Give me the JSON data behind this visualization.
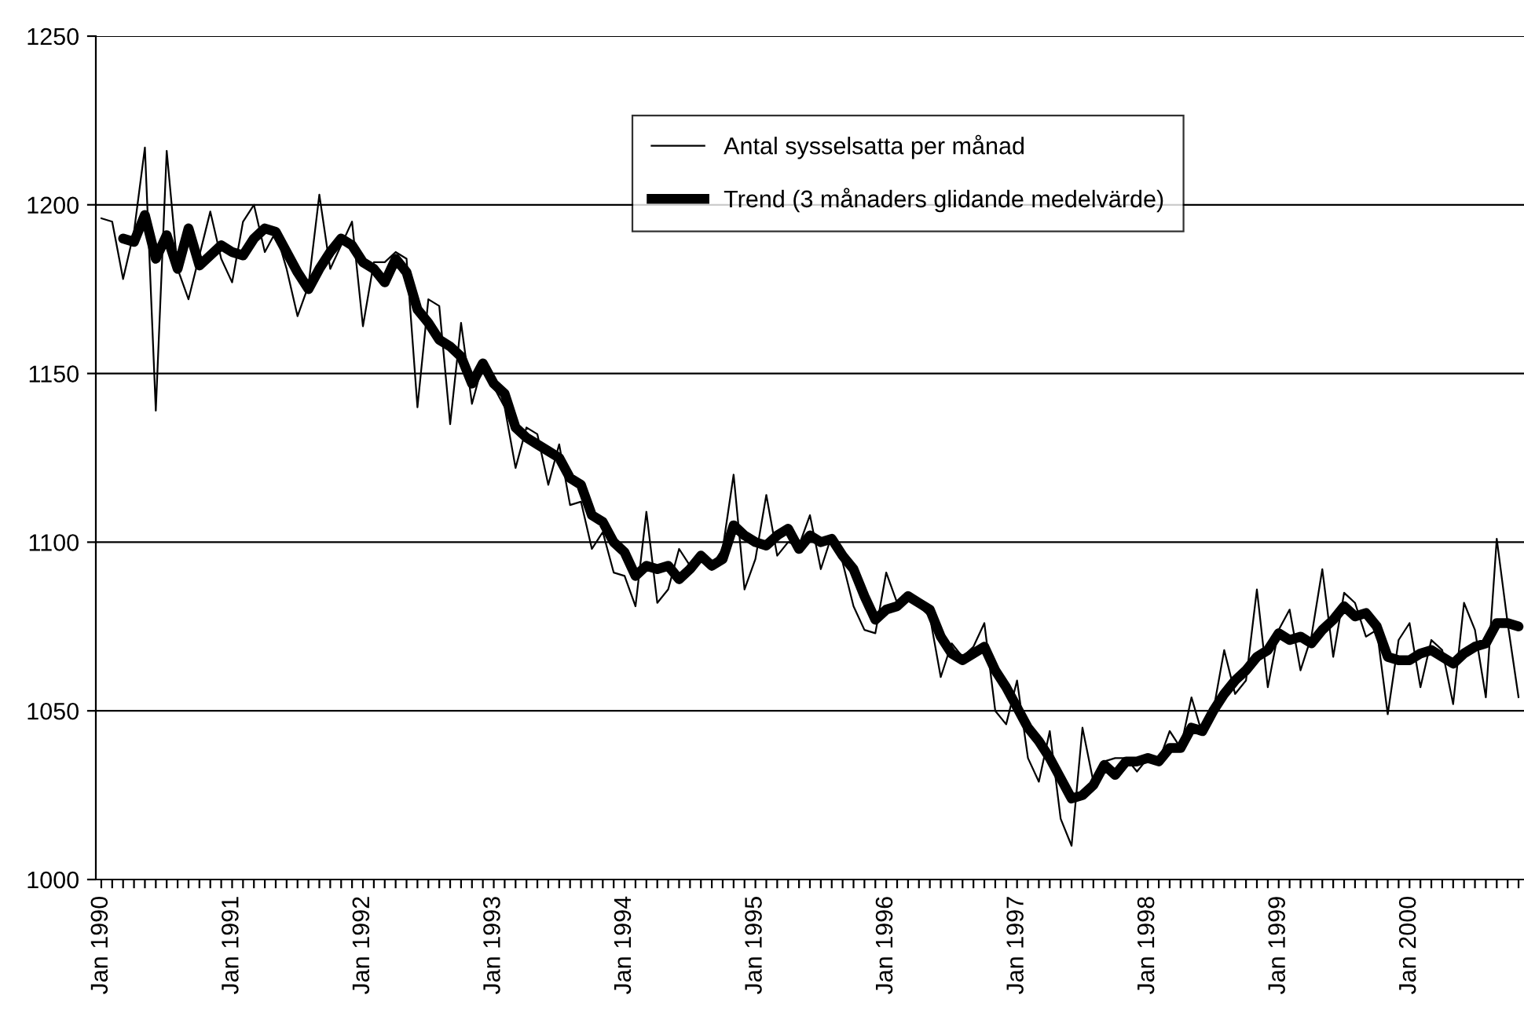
{
  "chart_data": {
    "type": "line",
    "categories": [
      "Jan 1990",
      null,
      null,
      null,
      null,
      null,
      null,
      null,
      null,
      null,
      null,
      null,
      "Jan 1991",
      null,
      null,
      null,
      null,
      null,
      null,
      null,
      null,
      null,
      null,
      null,
      "Jan 1992",
      null,
      null,
      null,
      null,
      null,
      null,
      null,
      null,
      null,
      null,
      null,
      "Jan 1993",
      null,
      null,
      null,
      null,
      null,
      null,
      null,
      null,
      null,
      null,
      null,
      "Jan 1994",
      null,
      null,
      null,
      null,
      null,
      null,
      null,
      null,
      null,
      null,
      null,
      "Jan 1995",
      null,
      null,
      null,
      null,
      null,
      null,
      null,
      null,
      null,
      null,
      null,
      "Jan 1996",
      null,
      null,
      null,
      null,
      null,
      null,
      null,
      null,
      null,
      null,
      null,
      "Jan 1997",
      null,
      null,
      null,
      null,
      null,
      null,
      null,
      null,
      null,
      null,
      null,
      "Jan 1998",
      null,
      null,
      null,
      null,
      null,
      null,
      null,
      null,
      null,
      null,
      null,
      "Jan 1999",
      null,
      null,
      null,
      null,
      null,
      null,
      null,
      null,
      null,
      null,
      null,
      "Jan 2000",
      null,
      null,
      null,
      null,
      null,
      null,
      null,
      null,
      null,
      null
    ],
    "series": [
      {
        "name": "Antal sysselsatta per månad",
        "color": "#000000",
        "values": [
          1196,
          1195,
          1178,
          1192,
          1217,
          1139,
          1216,
          1181,
          1172,
          1185,
          1198,
          1184,
          1177,
          1195,
          1200,
          1186,
          1192,
          1181,
          1167,
          1176,
          1203,
          1181,
          1188,
          1195,
          1164,
          1183,
          1183,
          1186,
          1184,
          1140,
          1172,
          1170,
          1135,
          1165,
          1141,
          1153,
          1146,
          1140,
          1122,
          1134,
          1132,
          1117,
          1129,
          1111,
          1112,
          1098,
          1103,
          1091,
          1090,
          1081,
          1109,
          1082,
          1086,
          1098,
          1093,
          1096,
          1093,
          1098,
          1120,
          1086,
          1095,
          1114,
          1096,
          1100,
          1099,
          1108,
          1092,
          1102,
          1094,
          1081,
          1074,
          1073,
          1091,
          1082,
          1084,
          1081,
          1078,
          1060,
          1070,
          1066,
          1069,
          1076,
          1050,
          1046,
          1059,
          1036,
          1029,
          1044,
          1018,
          1010,
          1045,
          1029,
          1035,
          1036,
          1036,
          1032,
          1036,
          1035,
          1044,
          1039,
          1054,
          1043,
          1050,
          1068,
          1055,
          1059,
          1086,
          1057,
          1074,
          1080,
          1062,
          1072,
          1092,
          1066,
          1085,
          1082,
          1072,
          1074,
          1049,
          1071,
          1076,
          1057,
          1071,
          1068,
          1052,
          1082,
          1074,
          1054,
          1101,
          1076,
          1054
        ]
      },
      {
        "name": "Trend (3 månaders glidande medelvärde)",
        "color": "#000000",
        "values": [
          null,
          null,
          1190,
          1189,
          1197,
          1184,
          1191,
          1181,
          1193,
          1182,
          1185,
          1188,
          1186,
          1185,
          1190,
          1193,
          1192,
          1186,
          1180,
          1175,
          1181,
          1186,
          1190,
          1188,
          1183,
          1181,
          1177,
          1184,
          1180,
          1169,
          1165,
          1160,
          1158,
          1155,
          1147,
          1153,
          1147,
          1144,
          1134,
          1131,
          1129,
          1127,
          1125,
          1119,
          1117,
          1108,
          1106,
          1100,
          1097,
          1090,
          1093,
          1092,
          1093,
          1089,
          1092,
          1096,
          1093,
          1095,
          1105,
          1102,
          1100,
          1099,
          1102,
          1104,
          1098,
          1102,
          1100,
          1101,
          1096,
          1092,
          1084,
          1077,
          1080,
          1081,
          1084,
          1082,
          1080,
          1072,
          1067,
          1065,
          1067,
          1069,
          1062,
          1057,
          1051,
          1045,
          1041,
          1036,
          1030,
          1024,
          1025,
          1028,
          1034,
          1031,
          1035,
          1035,
          1036,
          1035,
          1039,
          1039,
          1045,
          1044,
          1050,
          1055,
          1059,
          1062,
          1066,
          1068,
          1073,
          1071,
          1072,
          1070,
          1074,
          1077,
          1081,
          1078,
          1079,
          1075,
          1066,
          1065,
          1065,
          1067,
          1068,
          1066,
          1064,
          1067,
          1069,
          1070,
          1076,
          1076,
          1075
        ]
      }
    ],
    "ylim": [
      1000,
      1250
    ],
    "yticks": [
      1000,
      1050,
      1100,
      1150,
      1200,
      1250
    ],
    "grid": "y",
    "legend": "top right",
    "marker": "none",
    "line_style": "solid"
  }
}
